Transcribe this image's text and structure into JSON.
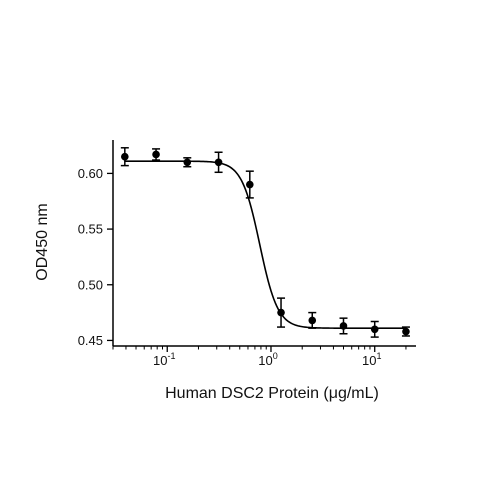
{
  "chart_data": {
    "type": "scatter",
    "xlabel": "Human DSC2 Protein (μg/mL)",
    "ylabel": "OD450 nm",
    "x_scale": "log",
    "xlim": [
      0.03,
      25
    ],
    "ylim": [
      0.445,
      0.63
    ],
    "x_ticks": [
      {
        "value": 0.1,
        "base": "10",
        "exp": "-1"
      },
      {
        "value": 1,
        "base": "10",
        "exp": "0"
      },
      {
        "value": 10,
        "base": "10",
        "exp": "1"
      }
    ],
    "y_ticks": [
      {
        "value": 0.45,
        "label": "0.45"
      },
      {
        "value": 0.5,
        "label": "0.50"
      },
      {
        "value": 0.55,
        "label": "0.55"
      },
      {
        "value": 0.6,
        "label": "0.60"
      }
    ],
    "points": [
      {
        "x": 0.039,
        "y": 0.615,
        "err": 0.008
      },
      {
        "x": 0.078,
        "y": 0.617,
        "err": 0.005
      },
      {
        "x": 0.156,
        "y": 0.61,
        "err": 0.004
      },
      {
        "x": 0.3125,
        "y": 0.61,
        "err": 0.009
      },
      {
        "x": 0.625,
        "y": 0.59,
        "err": 0.012
      },
      {
        "x": 1.25,
        "y": 0.475,
        "err": 0.013
      },
      {
        "x": 2.5,
        "y": 0.468,
        "err": 0.007
      },
      {
        "x": 5,
        "y": 0.463,
        "err": 0.007
      },
      {
        "x": 10,
        "y": 0.46,
        "err": 0.007
      },
      {
        "x": 20,
        "y": 0.458,
        "err": 0.004
      }
    ],
    "fit_curve": {
      "top": 0.611,
      "bottom": 0.461,
      "ec50": 0.78,
      "hill": 5
    },
    "grid": false,
    "color": "#000000"
  }
}
